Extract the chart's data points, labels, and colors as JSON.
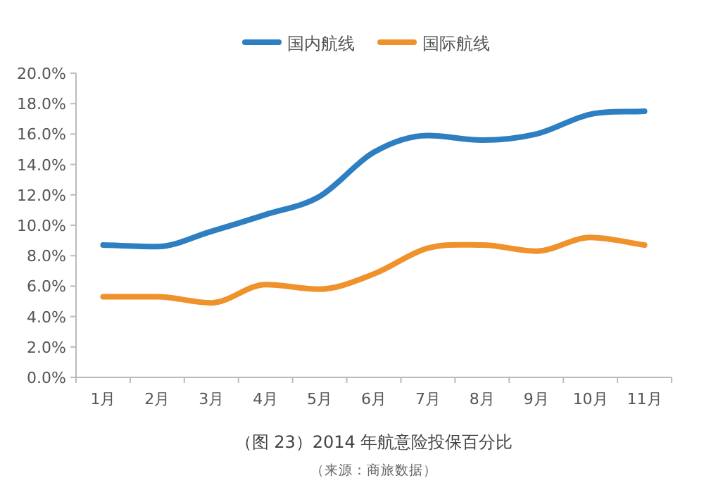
{
  "chart_data": {
    "type": "line",
    "title": "（图 23）2014 年航意险投保百分比",
    "annotations": [
      "（来源：商旅数据）"
    ],
    "categories": [
      "1月",
      "2月",
      "3月",
      "4月",
      "5月",
      "6月",
      "7月",
      "8月",
      "9月",
      "10月",
      "11月"
    ],
    "series": [
      {
        "name": "国内航线",
        "color": "#2e7fc1",
        "values": [
          8.7,
          8.6,
          9.6,
          10.7,
          11.9,
          14.8,
          15.9,
          15.6,
          16.0,
          17.3,
          17.5
        ]
      },
      {
        "name": "国际航线",
        "color": "#f0922b",
        "values": [
          5.3,
          5.3,
          4.9,
          6.1,
          5.8,
          6.8,
          8.5,
          8.7,
          8.3,
          9.2,
          8.7
        ]
      }
    ],
    "ylim": [
      0,
      20
    ],
    "yticks": [
      {
        "value": 0,
        "label": "0.0%"
      },
      {
        "value": 2,
        "label": "2.0%"
      },
      {
        "value": 4,
        "label": "4.0%"
      },
      {
        "value": 6,
        "label": "6.0%"
      },
      {
        "value": 8,
        "label": "8.0%"
      },
      {
        "value": 10,
        "label": "10.0%"
      },
      {
        "value": 12,
        "label": "12.0%"
      },
      {
        "value": 14,
        "label": "14.0%"
      },
      {
        "value": 16,
        "label": "16.0%"
      },
      {
        "value": 18,
        "label": "18.0%"
      },
      {
        "value": 20,
        "label": "20.0%"
      }
    ],
    "grid": false,
    "legend": "top",
    "marker": "none",
    "line_style": "solid"
  }
}
